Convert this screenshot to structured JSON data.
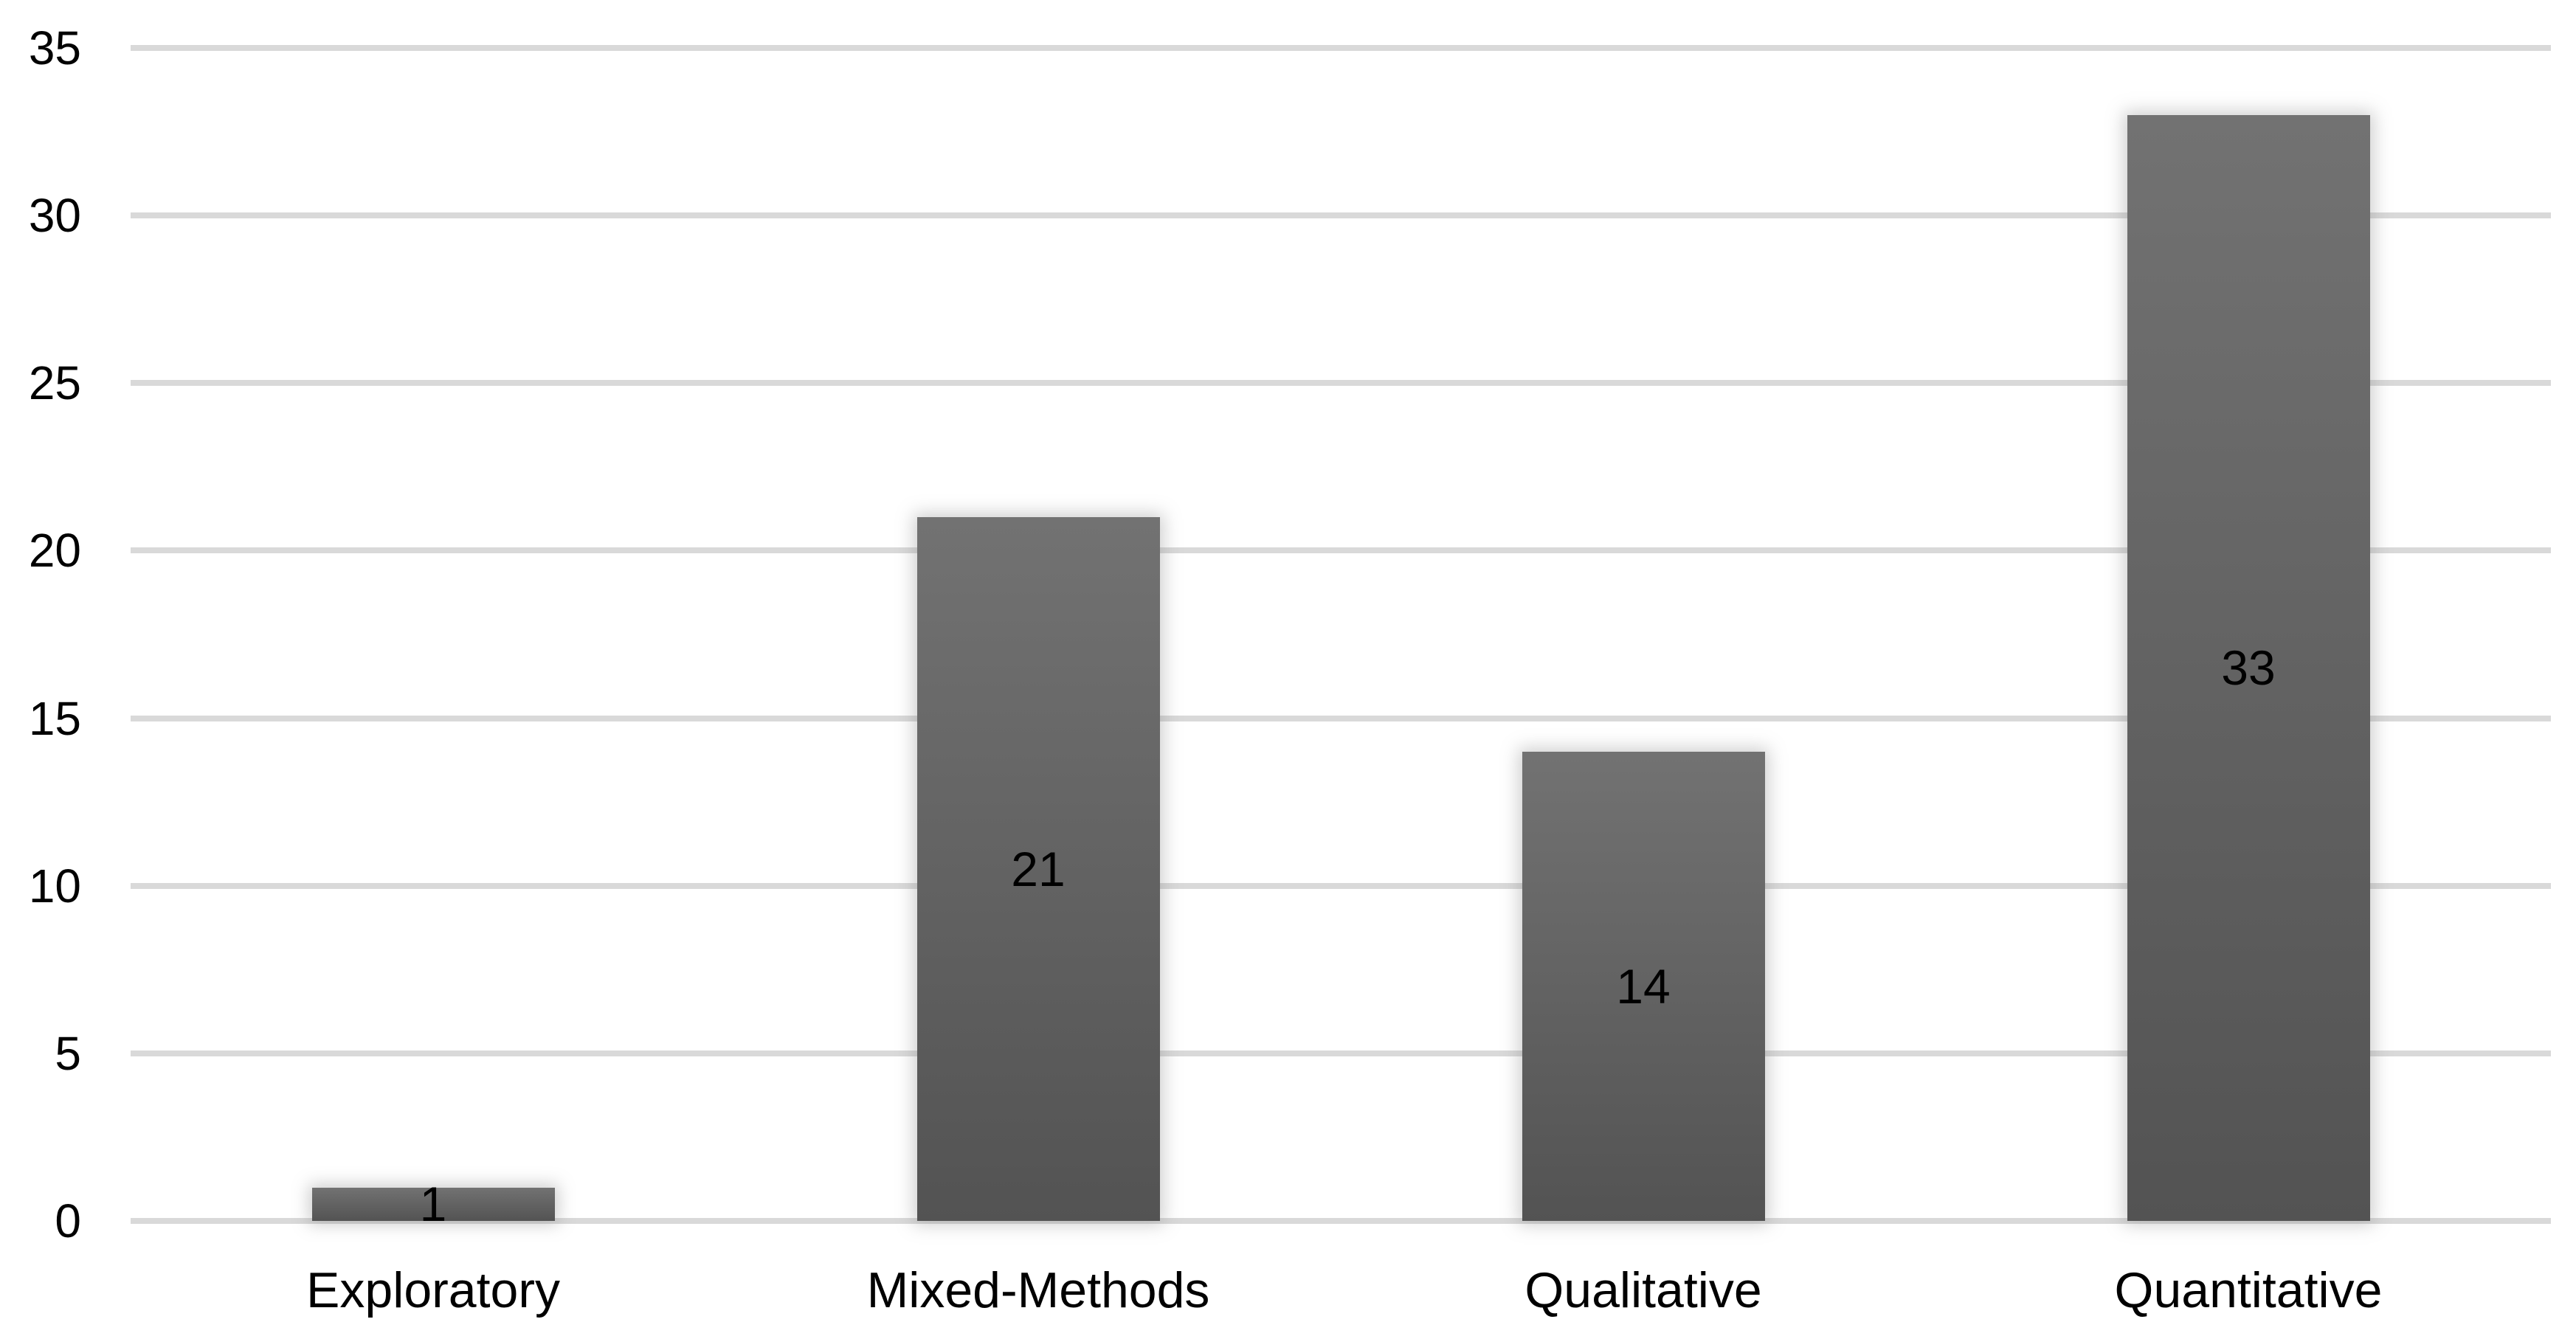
{
  "chart_data": {
    "type": "bar",
    "title": "",
    "xlabel": "",
    "ylabel": "",
    "categories": [
      "Exploratory",
      "Mixed-Methods",
      "Qualitative",
      "Quantitative"
    ],
    "values": [
      1,
      21,
      14,
      33
    ],
    "data_labels": [
      "1",
      "21",
      "14",
      "33"
    ],
    "ylim": [
      0,
      35
    ],
    "yticks": [
      0,
      5,
      10,
      15,
      20,
      25,
      30,
      35
    ],
    "grid": "horizontal",
    "legend": "none",
    "colors": {
      "bar_gradient_top": "#727272",
      "bar_gradient_bottom": "#535353",
      "gridline": "#d9d9d9",
      "text": "#000000",
      "background": "#ffffff"
    }
  }
}
